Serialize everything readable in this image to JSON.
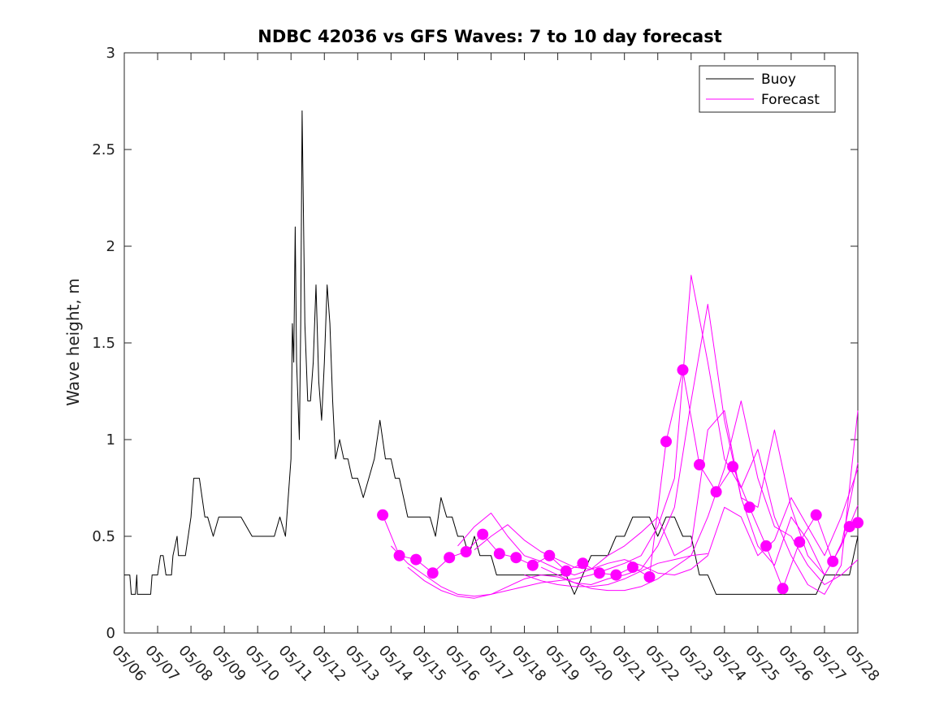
{
  "chart_data": {
    "type": "line",
    "title": "NDBC 42036 vs GFS Waves: 7 to 10 day forecast",
    "xlabel": "",
    "ylabel": "Wave height, m",
    "xlim": [
      "05/06",
      "05/28"
    ],
    "ylim": [
      0,
      3
    ],
    "x_tick_labels": [
      "05/06",
      "05/07",
      "05/08",
      "05/09",
      "05/10",
      "05/11",
      "05/12",
      "05/13",
      "05/14",
      "05/15",
      "05/16",
      "05/17",
      "05/18",
      "05/19",
      "05/20",
      "05/21",
      "05/22",
      "05/23",
      "05/24",
      "05/25",
      "05/26",
      "05/27",
      "05/28"
    ],
    "y_tick_labels": [
      "0",
      "0.5",
      "1",
      "1.5",
      "2",
      "2.5",
      "3"
    ],
    "y_ticks": [
      0,
      0.5,
      1,
      1.5,
      2,
      2.5,
      3
    ],
    "grid": false,
    "legend": {
      "position": "top-right",
      "entries": [
        "Buoy",
        "Forecast"
      ]
    },
    "colors": {
      "buoy": "#000000",
      "forecast": "#ff00ff"
    },
    "series": [
      {
        "name": "Buoy",
        "x": [
          "05/06 00:00",
          "05/06 04:00",
          "05/06 05:00",
          "05/06 08:00",
          "05/06 09:00",
          "05/06 09:30",
          "05/06 11:00",
          "05/06 19:00",
          "05/06 20:00",
          "05/07 00:00",
          "05/07 02:00",
          "05/07 04:00",
          "05/07 06:00",
          "05/07 10:00",
          "05/07 11:00",
          "05/07 14:00",
          "05/07 15:00",
          "05/07 20:00",
          "05/08 00:00",
          "05/08 02:00",
          "05/08 06:00",
          "05/08 10:00",
          "05/08 12:00",
          "05/08 16:00",
          "05/08 20:00",
          "05/09 00:00",
          "05/09 05:00",
          "05/09 12:00",
          "05/09 20:00",
          "05/10 00:00",
          "05/10 04:00",
          "05/10 08:00",
          "05/10 12:00",
          "05/10 16:00",
          "05/10 20:00",
          "05/10 22:00",
          "05/11 00:00",
          "05/11 01:00",
          "05/11 02:00",
          "05/11 03:00",
          "05/11 04:00",
          "05/11 05:00",
          "05/11 06:00",
          "05/11 07:00",
          "05/11 08:00",
          "05/11 10:00",
          "05/11 12:00",
          "05/11 14:00",
          "05/11 16:00",
          "05/11 18:00",
          "05/11 20:00",
          "05/11 22:00",
          "05/12 00:00",
          "05/12 02:00",
          "05/12 04:00",
          "05/12 06:00",
          "05/12 08:00",
          "05/12 11:00",
          "05/12 14:00",
          "05/12 17:00",
          "05/12 20:00",
          "05/13 00:00",
          "05/13 04:00",
          "05/13 08:00",
          "05/13 12:00",
          "05/13 16:00",
          "05/13 20:00",
          "05/14 00:00",
          "05/14 03:00",
          "05/14 06:00",
          "05/14 09:00",
          "05/14 12:00",
          "05/14 16:00",
          "05/14 20:00",
          "05/15 00:00",
          "05/15 04:00",
          "05/15 08:00",
          "05/15 12:00",
          "05/15 16:00",
          "05/15 20:00",
          "05/16 00:00",
          "05/16 04:00",
          "05/16 08:00",
          "05/16 12:00",
          "05/16 16:00",
          "05/16 20:00",
          "05/17 00:00",
          "05/17 04:00",
          "05/17 08:00",
          "05/17 12:00",
          "05/17 16:00",
          "05/17 20:00",
          "05/18 00:00",
          "05/18 06:00",
          "05/18 12:00",
          "05/18 18:00",
          "05/19 00:00",
          "05/19 06:00",
          "05/19 12:00",
          "05/19 18:00",
          "05/20 00:00",
          "05/20 06:00",
          "05/20 12:00",
          "05/20 18:00",
          "05/21 00:00",
          "05/21 06:00",
          "05/21 12:00",
          "05/21 18:00",
          "05/22 00:00",
          "05/22 06:00",
          "05/22 12:00",
          "05/22 18:00",
          "05/23 00:00",
          "05/23 06:00",
          "05/23 12:00",
          "05/23 18:00",
          "05/24 00:00",
          "05/24 06:00",
          "05/24 12:00",
          "05/24 18:00",
          "05/25 00:00",
          "05/25 06:00",
          "05/25 12:00",
          "05/25 18:00",
          "05/26 00:00",
          "05/26 06:00",
          "05/26 12:00",
          "05/26 18:00",
          "05/27 00:00",
          "05/27 06:00",
          "05/27 12:00",
          "05/27 18:00",
          "05/28 00:00"
        ],
        "values": [
          0.3,
          0.3,
          0.2,
          0.2,
          0.3,
          0.2,
          0.2,
          0.2,
          0.3,
          0.3,
          0.4,
          0.4,
          0.3,
          0.3,
          0.4,
          0.5,
          0.4,
          0.4,
          0.6,
          0.8,
          0.8,
          0.6,
          0.6,
          0.5,
          0.6,
          0.6,
          0.6,
          0.6,
          0.5,
          0.5,
          0.5,
          0.5,
          0.5,
          0.6,
          0.5,
          0.7,
          0.9,
          1.6,
          1.4,
          2.1,
          1.4,
          1.2,
          1.0,
          1.6,
          2.7,
          1.6,
          1.2,
          1.2,
          1.4,
          1.8,
          1.3,
          1.1,
          1.4,
          1.8,
          1.6,
          1.2,
          0.9,
          1.0,
          0.9,
          0.9,
          0.8,
          0.8,
          0.7,
          0.8,
          0.9,
          1.1,
          0.9,
          0.9,
          0.8,
          0.8,
          0.7,
          0.6,
          0.6,
          0.6,
          0.6,
          0.6,
          0.5,
          0.7,
          0.6,
          0.6,
          0.5,
          0.5,
          0.4,
          0.5,
          0.4,
          0.4,
          0.4,
          0.3,
          0.3,
          0.3,
          0.3,
          0.3,
          0.3,
          0.3,
          0.3,
          0.3,
          0.3,
          0.3,
          0.2,
          0.3,
          0.4,
          0.4,
          0.4,
          0.5,
          0.5,
          0.6,
          0.6,
          0.6,
          0.5,
          0.6,
          0.6,
          0.5,
          0.5,
          0.3,
          0.3,
          0.2,
          0.2,
          0.2,
          0.2,
          0.2,
          0.2,
          0.2,
          0.2,
          0.2,
          0.2,
          0.2,
          0.2,
          0.2,
          0.3,
          0.3,
          0.3,
          0.3,
          0.5
        ]
      },
      {
        "name": "Forecast",
        "x": [
          "05/13 18:00",
          "05/14 06:00",
          "05/14 18:00",
          "05/15 06:00",
          "05/15 18:00",
          "05/16 06:00",
          "05/16 18:00",
          "05/17 06:00",
          "05/17 18:00",
          "05/18 06:00",
          "05/18 18:00",
          "05/19 06:00",
          "05/19 18:00",
          "05/20 06:00",
          "05/20 18:00",
          "05/21 06:00",
          "05/21 18:00",
          "05/22 06:00",
          "05/22 18:00",
          "05/23 06:00",
          "05/23 18:00",
          "05/24 06:00",
          "05/24 18:00",
          "05/25 06:00",
          "05/25 18:00",
          "05/26 06:00",
          "05/26 18:00",
          "05/27 06:00",
          "05/27 18:00",
          "05/28 00:00"
        ],
        "values": [
          0.61,
          0.4,
          0.38,
          0.31,
          0.39,
          0.42,
          0.51,
          0.41,
          0.39,
          0.35,
          0.4,
          0.32,
          0.36,
          0.31,
          0.3,
          0.34,
          0.29,
          0.99,
          1.36,
          0.87,
          0.73,
          0.86,
          0.65,
          0.45,
          0.23,
          0.47,
          0.61,
          0.37,
          0.55,
          0.57
        ]
      },
      {
        "name": "",
        "x": [
          "05/14 00:00",
          "05/14 12:00",
          "05/15 00:00",
          "05/15 12:00",
          "05/16 00:00",
          "05/16 12:00",
          "05/17 00:00",
          "05/17 12:00",
          "05/18 00:00",
          "05/18 12:00",
          "05/19 00:00",
          "05/19 12:00",
          "05/20 00:00",
          "05/20 12:00",
          "05/21 00:00",
          "05/21 12:00",
          "05/22 00:00",
          "05/22 12:00",
          "05/23 00:00",
          "05/23 12:00",
          "05/24 00:00",
          "05/24 12:00",
          "05/25 00:00",
          "05/25 12:00",
          "05/26 00:00",
          "05/26 12:00",
          "05/27 00:00",
          "05/27 12:00",
          "05/28 00:00"
        ],
        "values": [
          0.45,
          0.36,
          0.3,
          0.24,
          0.2,
          0.19,
          0.2,
          0.22,
          0.24,
          0.26,
          0.27,
          0.28,
          0.3,
          0.33,
          0.36,
          0.4,
          0.55,
          0.8,
          1.85,
          1.4,
          0.9,
          0.75,
          0.95,
          0.6,
          0.4,
          0.25,
          0.2,
          0.35,
          1.15
        ]
      },
      {
        "name": "",
        "x": [
          "05/14 12:00",
          "05/15 00:00",
          "05/15 12:00",
          "05/16 00:00",
          "05/16 12:00",
          "05/17 00:00",
          "05/17 12:00",
          "05/18 00:00",
          "05/18 12:00",
          "05/19 00:00",
          "05/19 12:00",
          "05/20 00:00",
          "05/20 12:00",
          "05/21 00:00",
          "05/21 12:00",
          "05/22 00:00",
          "05/22 12:00",
          "05/23 00:00",
          "05/23 12:00",
          "05/24 00:00",
          "05/24 12:00",
          "05/25 00:00",
          "05/25 12:00",
          "05/26 00:00",
          "05/26 12:00",
          "05/27 00:00",
          "05/27 12:00",
          "05/28 00:00"
        ],
        "values": [
          0.34,
          0.27,
          0.22,
          0.19,
          0.18,
          0.2,
          0.24,
          0.28,
          0.3,
          0.29,
          0.26,
          0.25,
          0.28,
          0.3,
          0.33,
          0.45,
          0.65,
          1.2,
          1.7,
          1.1,
          0.7,
          0.65,
          1.05,
          0.65,
          0.4,
          0.3,
          0.45,
          0.88
        ]
      },
      {
        "name": "",
        "x": [
          "05/16 00:00",
          "05/16 12:00",
          "05/17 00:00",
          "05/17 12:00",
          "05/18 00:00",
          "05/18 12:00",
          "05/19 00:00",
          "05/19 12:00",
          "05/20 00:00",
          "05/20 12:00",
          "05/21 00:00",
          "05/21 12:00",
          "05/22 00:00",
          "05/22 12:00",
          "05/23 00:00",
          "05/23 12:00",
          "05/24 00:00",
          "05/24 12:00",
          "05/25 00:00",
          "05/25 12:00",
          "05/26 00:00",
          "05/26 12:00",
          "05/27 00:00",
          "05/27 12:00",
          "05/28 00:00"
        ],
        "values": [
          0.45,
          0.55,
          0.62,
          0.5,
          0.4,
          0.37,
          0.33,
          0.3,
          0.33,
          0.4,
          0.45,
          0.52,
          0.6,
          0.4,
          0.45,
          1.05,
          1.15,
          0.7,
          0.45,
          0.35,
          0.6,
          0.48,
          0.3,
          0.45,
          0.66
        ]
      },
      {
        "name": "",
        "x": [
          "05/16 12:00",
          "05/17 00:00",
          "05/17 12:00",
          "05/18 00:00",
          "05/18 12:00",
          "05/19 00:00",
          "05/19 12:00",
          "05/20 00:00",
          "05/20 12:00",
          "05/21 00:00",
          "05/21 12:00",
          "05/22 00:00",
          "05/22 12:00",
          "05/23 00:00",
          "05/23 12:00",
          "05/24 00:00",
          "05/24 12:00",
          "05/25 00:00",
          "05/25 12:00",
          "05/26 00:00",
          "05/26 12:00",
          "05/27 00:00",
          "05/27 12:00",
          "05/28 00:00"
        ],
        "values": [
          0.43,
          0.5,
          0.56,
          0.48,
          0.42,
          0.38,
          0.34,
          0.33,
          0.36,
          0.38,
          0.35,
          0.31,
          0.3,
          0.33,
          0.4,
          0.65,
          0.6,
          0.4,
          0.48,
          0.7,
          0.55,
          0.4,
          0.6,
          0.85
        ]
      },
      {
        "name": "",
        "x": [
          "05/18 00:00",
          "05/18 12:00",
          "05/19 00:00",
          "05/19 12:00",
          "05/20 00:00",
          "05/20 12:00",
          "05/21 00:00",
          "05/21 12:00",
          "05/22 00:00",
          "05/22 12:00",
          "05/23 00:00",
          "05/23 12:00"
        ],
        "values": [
          0.3,
          0.27,
          0.25,
          0.24,
          0.24,
          0.25,
          0.28,
          0.32,
          0.36,
          0.38,
          0.4,
          0.41
        ]
      },
      {
        "name": "",
        "x": [
          "05/18 12:00",
          "05/19 00:00",
          "05/19 12:00",
          "05/20 00:00",
          "05/20 12:00",
          "05/21 00:00",
          "05/21 12:00",
          "05/22 00:00",
          "05/22 12:00",
          "05/23 00:00",
          "05/23 12:00",
          "05/24 00:00",
          "05/24 12:00",
          "05/25 00:00",
          "05/25 12:00",
          "05/26 00:00",
          "05/26 12:00",
          "05/27 00:00",
          "05/27 12:00",
          "05/28 00:00"
        ],
        "values": [
          0.34,
          0.3,
          0.26,
          0.23,
          0.22,
          0.22,
          0.24,
          0.28,
          0.34,
          0.4,
          0.6,
          0.85,
          1.2,
          0.8,
          0.55,
          0.5,
          0.35,
          0.25,
          0.3,
          0.38
        ]
      }
    ]
  }
}
